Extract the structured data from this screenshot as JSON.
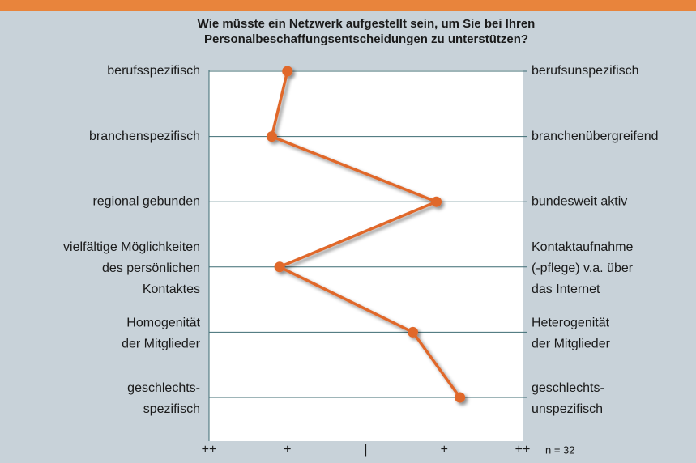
{
  "chart_data": {
    "type": "line",
    "title": [
      "Wie müsste ein Netzwerk aufgestellt sein, um Sie bei Ihren",
      "Personalbeschaffungsentscheidungen zu unterstützen?"
    ],
    "categories": [
      [
        "berufsspezifisch"
      ],
      [
        "branchenspezifisch"
      ],
      [
        "regional gebunden"
      ],
      [
        "vielfältige Möglichkeiten",
        "des persönlichen",
        "Kontaktes"
      ],
      [
        "Homogenität",
        "der Mitglieder"
      ],
      [
        "geschlechts-",
        "spezifisch"
      ]
    ],
    "right_labels": [
      [
        "berufsunspezifisch"
      ],
      [
        "branchenübergreifend"
      ],
      [
        "bundesweit aktiv"
      ],
      [
        "Kontaktaufnahme",
        "(-pflege) v.a. über",
        "das Internet"
      ],
      [
        "Heterogenität",
        "der Mitglieder"
      ],
      [
        "geschlechts-",
        "unspezifisch"
      ]
    ],
    "values": [
      -1.0,
      -1.2,
      0.9,
      -1.1,
      0.6,
      1.2
    ],
    "color": "#e0672a",
    "xlim": [
      -2,
      2
    ],
    "xticks": [
      {
        "value": -2,
        "label": "++"
      },
      {
        "value": -1,
        "label": "+"
      },
      {
        "value": 0,
        "label": "|"
      },
      {
        "value": 1,
        "label": "+"
      },
      {
        "value": 2,
        "label": "++"
      }
    ],
    "grid": true,
    "annotation": "n = 32"
  }
}
